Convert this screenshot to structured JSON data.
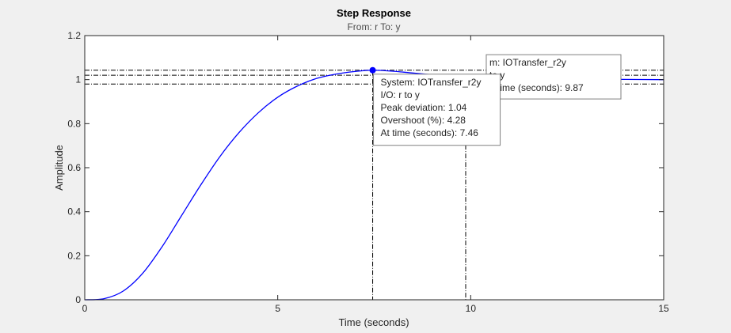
{
  "chart_data": {
    "type": "line",
    "title": "Step Response",
    "subtitle": "From: r  To: y",
    "xlabel": "Time (seconds)",
    "ylabel": "Amplitude",
    "xlim": [
      0,
      15
    ],
    "ylim": [
      0,
      1.2
    ],
    "xticks": [
      {
        "value": 0,
        "label": "0"
      },
      {
        "value": 5,
        "label": "5"
      },
      {
        "value": 10,
        "label": "10"
      },
      {
        "value": 15,
        "label": "15"
      }
    ],
    "yticks": [
      {
        "value": 0,
        "label": "0"
      },
      {
        "value": 0.2,
        "label": "0.2"
      },
      {
        "value": 0.4,
        "label": "0.4"
      },
      {
        "value": 0.6,
        "label": "0.6"
      },
      {
        "value": 0.8,
        "label": "0.8"
      },
      {
        "value": 1,
        "label": "1"
      },
      {
        "value": 1.2,
        "label": "1.2"
      }
    ],
    "grid": false,
    "series": [
      {
        "color": "#0000ff",
        "x": [
          0,
          0.5,
          1,
          1.5,
          2,
          2.5,
          3,
          3.5,
          4,
          4.5,
          5,
          5.5,
          6,
          6.5,
          7,
          7.46,
          8,
          8.5,
          9,
          9.5,
          9.87,
          10.5,
          11,
          12,
          13,
          14,
          15
        ],
        "y": [
          0,
          0.005,
          0.04,
          0.12,
          0.24,
          0.38,
          0.52,
          0.65,
          0.76,
          0.85,
          0.92,
          0.97,
          1.005,
          1.025,
          1.037,
          1.0428,
          1.038,
          1.03,
          1.022,
          1.015,
          1.012,
          1.008,
          1.006,
          1.003,
          1.002,
          1.001,
          1.0
        ]
      }
    ],
    "reference_lines": {
      "color": "#000000",
      "horizontal": [
        1.0428,
        1.02,
        0.98
      ],
      "vertical": [
        {
          "x": 7.46,
          "from_y": 1.0428
        },
        {
          "x": 9.87,
          "from_y": 1.02
        }
      ]
    },
    "peak_marker": {
      "x": 7.46,
      "y": 1.0428,
      "color": "#0000ff"
    },
    "datatips": {
      "peak": {
        "lines": [
          "System:  IOTransfer_r2y",
          "I/O:  r  to  y",
          "Peak  deviation:  1.04",
          "Overshoot  (%):  4.28",
          "At time  (seconds):  7.46"
        ],
        "anchor": {
          "x": 7.46,
          "y": 1.0428
        }
      },
      "settling": {
        "lines": [
          "m:  IOTransfer_r2y",
          "to  y",
          "g  time  (seconds):  9.87"
        ],
        "anchor": {
          "x": 9.87,
          "y": 1.02
        }
      }
    }
  }
}
